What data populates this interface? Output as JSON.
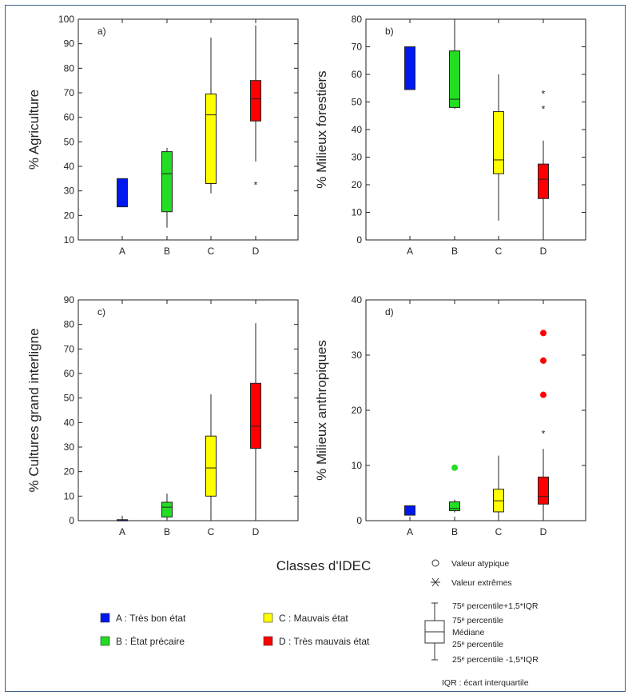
{
  "chart_data": [
    {
      "type": "boxplot",
      "panel_label": "a)",
      "ylabel": "% Agriculture",
      "ylim": [
        10,
        100
      ],
      "yticks": [
        10,
        20,
        30,
        40,
        50,
        60,
        70,
        80,
        90,
        100
      ],
      "categories": [
        "A",
        "B",
        "C",
        "D"
      ],
      "boxes": [
        {
          "category": "A",
          "q1": 23.5,
          "median": null,
          "q3": 35,
          "whisker_low": null,
          "whisker_high": null,
          "outliers": [],
          "extremes": [],
          "color": "#0018f0"
        },
        {
          "category": "B",
          "q1": 21.5,
          "median": 37,
          "q3": 46,
          "whisker_low": 15,
          "whisker_high": 47.5,
          "outliers": [],
          "extremes": [],
          "color": "#22dd22"
        },
        {
          "category": "C",
          "q1": 33,
          "median": 61,
          "q3": 69.5,
          "whisker_low": 29,
          "whisker_high": 92.5,
          "outliers": [],
          "extremes": [],
          "color": "#ffff00"
        },
        {
          "category": "D",
          "q1": 58.5,
          "median": 67.5,
          "q3": 75,
          "whisker_low": 42,
          "whisker_high": 97.5,
          "outliers": [],
          "extremes": [
            33
          ],
          "color": "#ff0000"
        }
      ]
    },
    {
      "type": "boxplot",
      "panel_label": "b)",
      "ylabel": "% Milieux forestiers",
      "ylim": [
        0,
        80
      ],
      "yticks": [
        0,
        10,
        20,
        30,
        40,
        50,
        60,
        70,
        80
      ],
      "categories": [
        "A",
        "B",
        "C",
        "D"
      ],
      "boxes": [
        {
          "category": "A",
          "q1": 54.5,
          "median": null,
          "q3": 70,
          "whisker_low": null,
          "whisker_high": null,
          "outliers": [],
          "extremes": [],
          "color": "#0018f0"
        },
        {
          "category": "B",
          "q1": 48,
          "median": 51,
          "q3": 68.5,
          "whisker_low": 47.5,
          "whisker_high": 80,
          "outliers": [],
          "extremes": [],
          "color": "#22dd22"
        },
        {
          "category": "C",
          "q1": 24,
          "median": 29,
          "q3": 46.5,
          "whisker_low": 7,
          "whisker_high": 60,
          "outliers": [],
          "extremes": [],
          "color": "#ffff00"
        },
        {
          "category": "D",
          "q1": 15,
          "median": 22,
          "q3": 27.5,
          "whisker_low": 0.5,
          "whisker_high": 36,
          "outliers": [],
          "extremes": [
            48,
            53.5
          ],
          "color": "#ff0000"
        }
      ]
    },
    {
      "type": "boxplot",
      "panel_label": "c)",
      "ylabel": "% Cultures grand interligne",
      "ylim": [
        0,
        90
      ],
      "yticks": [
        0,
        10,
        20,
        30,
        40,
        50,
        60,
        70,
        80,
        90
      ],
      "categories": [
        "A",
        "B",
        "C",
        "D"
      ],
      "boxes": [
        {
          "category": "A",
          "q1": 0,
          "median": 0,
          "q3": 0.4,
          "whisker_low": 0,
          "whisker_high": 2,
          "outliers": [],
          "extremes": [],
          "color": "#0018f0"
        },
        {
          "category": "B",
          "q1": 1.5,
          "median": 5.5,
          "q3": 7.5,
          "whisker_low": 0.5,
          "whisker_high": 11,
          "outliers": [],
          "extremes": [],
          "color": "#22dd22"
        },
        {
          "category": "C",
          "q1": 10,
          "median": 21.5,
          "q3": 34.5,
          "whisker_low": 0.5,
          "whisker_high": 51.5,
          "outliers": [],
          "extremes": [],
          "color": "#ffff00"
        },
        {
          "category": "D",
          "q1": 29.5,
          "median": 38.5,
          "q3": 56,
          "whisker_low": 1.5,
          "whisker_high": 80.5,
          "outliers": [],
          "extremes": [],
          "color": "#ff0000"
        }
      ]
    },
    {
      "type": "boxplot",
      "panel_label": "d)",
      "ylabel": "% Milieux anthropiques",
      "ylim": [
        0,
        40
      ],
      "yticks": [
        0,
        10,
        20,
        30,
        40
      ],
      "categories": [
        "A",
        "B",
        "C",
        "D"
      ],
      "boxes": [
        {
          "category": "A",
          "q1": 1,
          "median": null,
          "q3": 2.7,
          "whisker_low": null,
          "whisker_high": null,
          "outliers": [],
          "extremes": [],
          "color": "#0018f0"
        },
        {
          "category": "B",
          "q1": 1.8,
          "median": 2.2,
          "q3": 3.4,
          "whisker_low": 1.5,
          "whisker_high": 3.8,
          "outliers": [
            9.6
          ],
          "extremes": [],
          "color": "#22dd22"
        },
        {
          "category": "C",
          "q1": 1.6,
          "median": 3.6,
          "q3": 5.7,
          "whisker_low": 0.3,
          "whisker_high": 11.8,
          "outliers": [],
          "extremes": [],
          "color": "#ffff00"
        },
        {
          "category": "D",
          "q1": 3,
          "median": 4.4,
          "q3": 7.9,
          "whisker_low": 0.3,
          "whisker_high": 13,
          "outliers": [
            22.8,
            29,
            34
          ],
          "extremes": [
            16
          ],
          "color": "#ff0000"
        }
      ]
    }
  ],
  "xlabel": "Classes d'IDEC",
  "legend": [
    {
      "label": "A : Très bon état",
      "color": "#0018f0"
    },
    {
      "label": "B : État précaire",
      "color": "#22dd22"
    },
    {
      "label": "C : Mauvais état",
      "color": "#ffff00"
    },
    {
      "label": "D : Très mauvais état",
      "color": "#ff0000"
    }
  ],
  "key": {
    "outlier_label": "Valeur atypique",
    "extreme_label": "Valeur extrêmes",
    "upper_whisker_label": "75ᵉ percentile+1,5*IQR",
    "q3_label": "75ᵉ percentile",
    "median_label": "Médiane",
    "q1_label": "25ᵉ percentile",
    "lower_whisker_label": "25ᵉ percentile   -1,5*IQR",
    "iqr_note": "IQR : écart interquartile"
  }
}
